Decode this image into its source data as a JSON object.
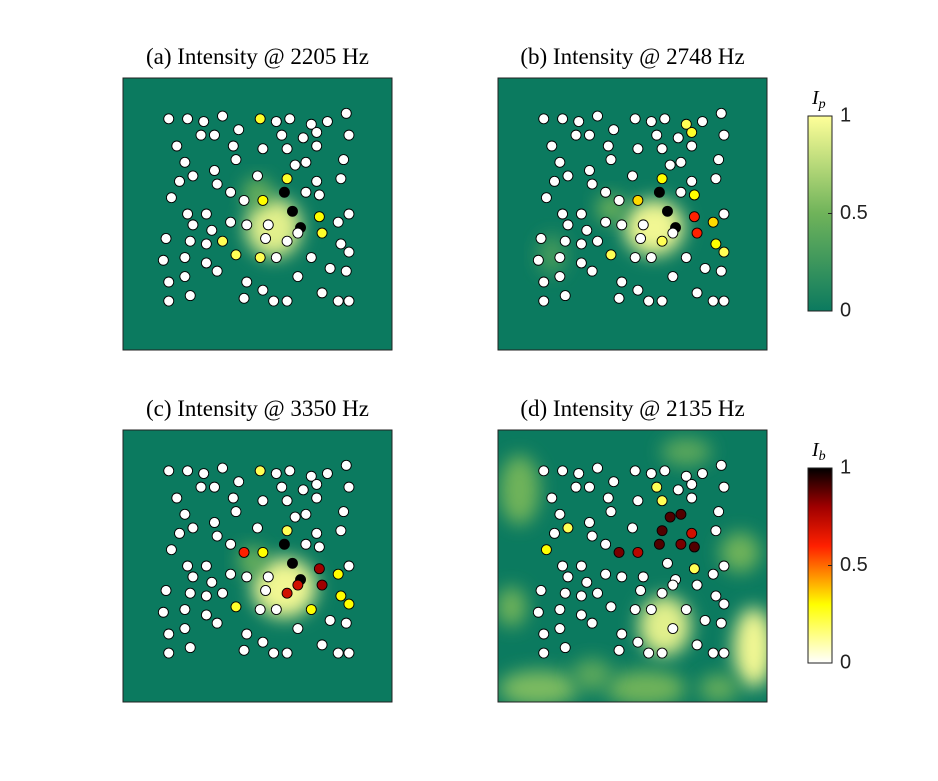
{
  "chart_data": [
    {
      "type": "scatter",
      "title": "(a) Intensity @ 2205 Hz",
      "xlim": [
        0,
        1
      ],
      "ylim": [
        1,
        0
      ],
      "values": [
        0,
        0,
        0,
        0,
        0.25,
        0,
        0,
        0,
        0,
        0,
        0,
        0,
        0,
        0,
        0,
        0,
        0,
        0,
        0,
        0,
        0,
        0,
        0,
        0,
        0,
        0,
        0,
        0,
        0,
        0,
        0,
        0,
        0.25,
        0,
        0,
        0,
        0,
        0,
        0.3,
        1,
        0,
        0,
        0,
        0,
        0,
        1,
        0.3,
        0,
        0,
        0,
        0,
        0,
        0,
        1,
        0,
        0,
        0,
        0,
        0.2,
        0,
        0,
        0,
        0.25,
        0,
        0,
        0,
        0.2,
        0.2,
        0,
        0,
        0,
        0,
        0,
        0,
        0,
        0,
        0,
        0,
        0,
        0,
        0,
        0,
        0,
        0,
        0,
        0,
        0
      ]
    },
    {
      "type": "scatter",
      "title": "(b) Intensity @ 2748 Hz",
      "xlim": [
        0,
        1
      ],
      "ylim": [
        1,
        0
      ],
      "values": [
        0,
        0,
        0,
        0,
        0,
        0,
        0,
        0.2,
        0,
        0,
        0,
        0,
        0,
        0,
        0,
        0,
        0,
        0.25,
        0,
        0,
        0,
        0,
        0,
        0,
        0,
        0,
        0,
        0,
        0,
        0,
        0,
        0,
        0.3,
        0,
        0,
        0,
        0,
        0,
        0.35,
        1,
        0,
        0.3,
        0,
        0,
        0,
        1,
        0.6,
        0,
        0,
        0,
        0,
        0,
        0,
        1,
        0.35,
        0,
        0,
        0,
        0,
        0,
        0.2,
        0,
        0.6,
        0.3,
        0,
        0,
        0.2,
        0,
        0,
        0,
        0.2,
        0,
        0,
        0,
        0,
        0,
        0,
        0,
        0,
        0,
        0,
        0,
        0,
        0,
        0,
        0,
        0
      ]
    },
    {
      "type": "scatter",
      "title": "(c) Intensity @ 3350 Hz",
      "xlim": [
        0,
        1
      ],
      "ylim": [
        1,
        0
      ],
      "values": [
        0,
        0,
        0,
        0,
        0.2,
        0,
        0,
        0,
        0,
        0,
        0,
        0,
        0,
        0,
        0,
        0,
        0,
        0,
        0,
        0,
        0,
        0,
        0,
        0,
        0,
        0,
        0,
        0,
        0,
        0,
        0,
        0,
        0.2,
        0,
        0,
        0,
        0,
        0.6,
        0.3,
        1,
        0,
        0,
        0,
        0,
        0,
        1,
        0.8,
        0,
        0,
        0,
        0,
        0,
        0,
        1,
        0.3,
        0,
        0,
        0,
        0,
        0,
        0.7,
        0.7,
        0.8,
        0.3,
        0,
        0,
        0.25,
        0,
        0,
        0.3,
        0.3,
        0,
        0,
        0,
        0,
        0,
        0,
        0,
        0,
        0,
        0,
        0,
        0,
        0,
        0,
        0,
        0
      ]
    },
    {
      "type": "scatter",
      "title": "(d) Intensity @ 2135 Hz",
      "xlim": [
        0,
        1
      ],
      "ylim": [
        1,
        0
      ],
      "values": [
        0,
        0,
        0,
        0,
        0,
        0,
        0,
        0,
        0,
        0,
        0,
        0,
        0,
        0,
        0,
        0.2,
        0,
        0,
        0,
        0,
        0.2,
        0,
        0,
        0,
        0,
        0.9,
        0.9,
        0,
        0,
        0.2,
        0,
        0,
        0.9,
        0.7,
        0,
        0.3,
        0,
        0.85,
        0.75,
        0.9,
        0.85,
        0.9,
        0,
        0,
        0,
        0,
        0.2,
        0,
        0,
        0,
        0,
        0,
        0,
        0,
        0,
        0,
        0,
        0,
        0,
        0,
        0,
        0,
        0,
        0,
        0,
        0,
        0,
        0,
        0,
        0,
        0,
        0,
        0,
        0,
        0,
        0,
        0,
        0,
        0,
        0,
        0,
        0,
        0,
        0,
        0,
        0,
        0
      ]
    }
  ],
  "points": {
    "x": [
      0.17,
      0.24,
      0.3,
      0.37,
      0.51,
      0.57,
      0.62,
      0.7,
      0.76,
      0.83,
      0.2,
      0.29,
      0.34,
      0.43,
      0.52,
      0.59,
      0.67,
      0.72,
      0.84,
      0.41,
      0.61,
      0.72,
      0.23,
      0.34,
      0.42,
      0.64,
      0.68,
      0.82,
      0.21,
      0.26,
      0.35,
      0.5,
      0.61,
      0.72,
      0.81,
      0.18,
      0.4,
      0.45,
      0.52,
      0.6,
      0.68,
      0.73,
      0.24,
      0.31,
      0.4,
      0.63,
      0.73,
      0.84,
      0.16,
      0.26,
      0.33,
      0.46,
      0.54,
      0.66,
      0.8,
      0.15,
      0.25,
      0.31,
      0.37,
      0.53,
      0.61,
      0.65,
      0.74,
      0.81,
      0.23,
      0.31,
      0.42,
      0.51,
      0.57,
      0.7,
      0.84,
      0.17,
      0.23,
      0.35,
      0.46,
      0.65,
      0.77,
      0.83,
      0.17,
      0.25,
      0.45,
      0.52,
      0.56,
      0.61,
      0.74,
      0.8,
      0.84
    ],
    "y": [
      0.15,
      0.15,
      0.16,
      0.14,
      0.15,
      0.16,
      0.15,
      0.17,
      0.16,
      0.13,
      0.25,
      0.21,
      0.21,
      0.19,
      0.26,
      0.21,
      0.22,
      0.2,
      0.21,
      0.25,
      0.26,
      0.25,
      0.31,
      0.34,
      0.3,
      0.32,
      0.31,
      0.3,
      0.38,
      0.36,
      0.39,
      0.36,
      0.37,
      0.38,
      0.37,
      0.44,
      0.42,
      0.45,
      0.45,
      0.42,
      0.42,
      0.43,
      0.5,
      0.5,
      0.53,
      0.49,
      0.51,
      0.5,
      0.59,
      0.54,
      0.56,
      0.54,
      0.54,
      0.55,
      0.53,
      0.67,
      0.6,
      0.61,
      0.6,
      0.59,
      0.6,
      0.57,
      0.57,
      0.61,
      0.66,
      0.68,
      0.65,
      0.66,
      0.66,
      0.66,
      0.64,
      0.75,
      0.73,
      0.71,
      0.75,
      0.73,
      0.7,
      0.71,
      0.82,
      0.8,
      0.81,
      0.78,
      0.82,
      0.82,
      0.79,
      0.82,
      0.82
    ]
  },
  "colorbars": [
    {
      "label": "I",
      "label_sub": "p",
      "lim": [
        0,
        1
      ],
      "ticks": [
        0,
        0.5,
        1
      ],
      "colormap": [
        [
          0,
          "#0b7a5f"
        ],
        [
          0.5,
          "#6fb35a"
        ],
        [
          1,
          "#ffff99"
        ]
      ]
    },
    {
      "label": "I",
      "label_sub": "b",
      "lim": [
        0,
        1
      ],
      "ticks": [
        0,
        0.5,
        1
      ],
      "colormap": [
        [
          0,
          "#ffffff"
        ],
        [
          0.3,
          "#ffff00"
        ],
        [
          0.6,
          "#ff2000"
        ],
        [
          0.8,
          "#a00000"
        ],
        [
          1,
          "#000000"
        ]
      ]
    }
  ]
}
